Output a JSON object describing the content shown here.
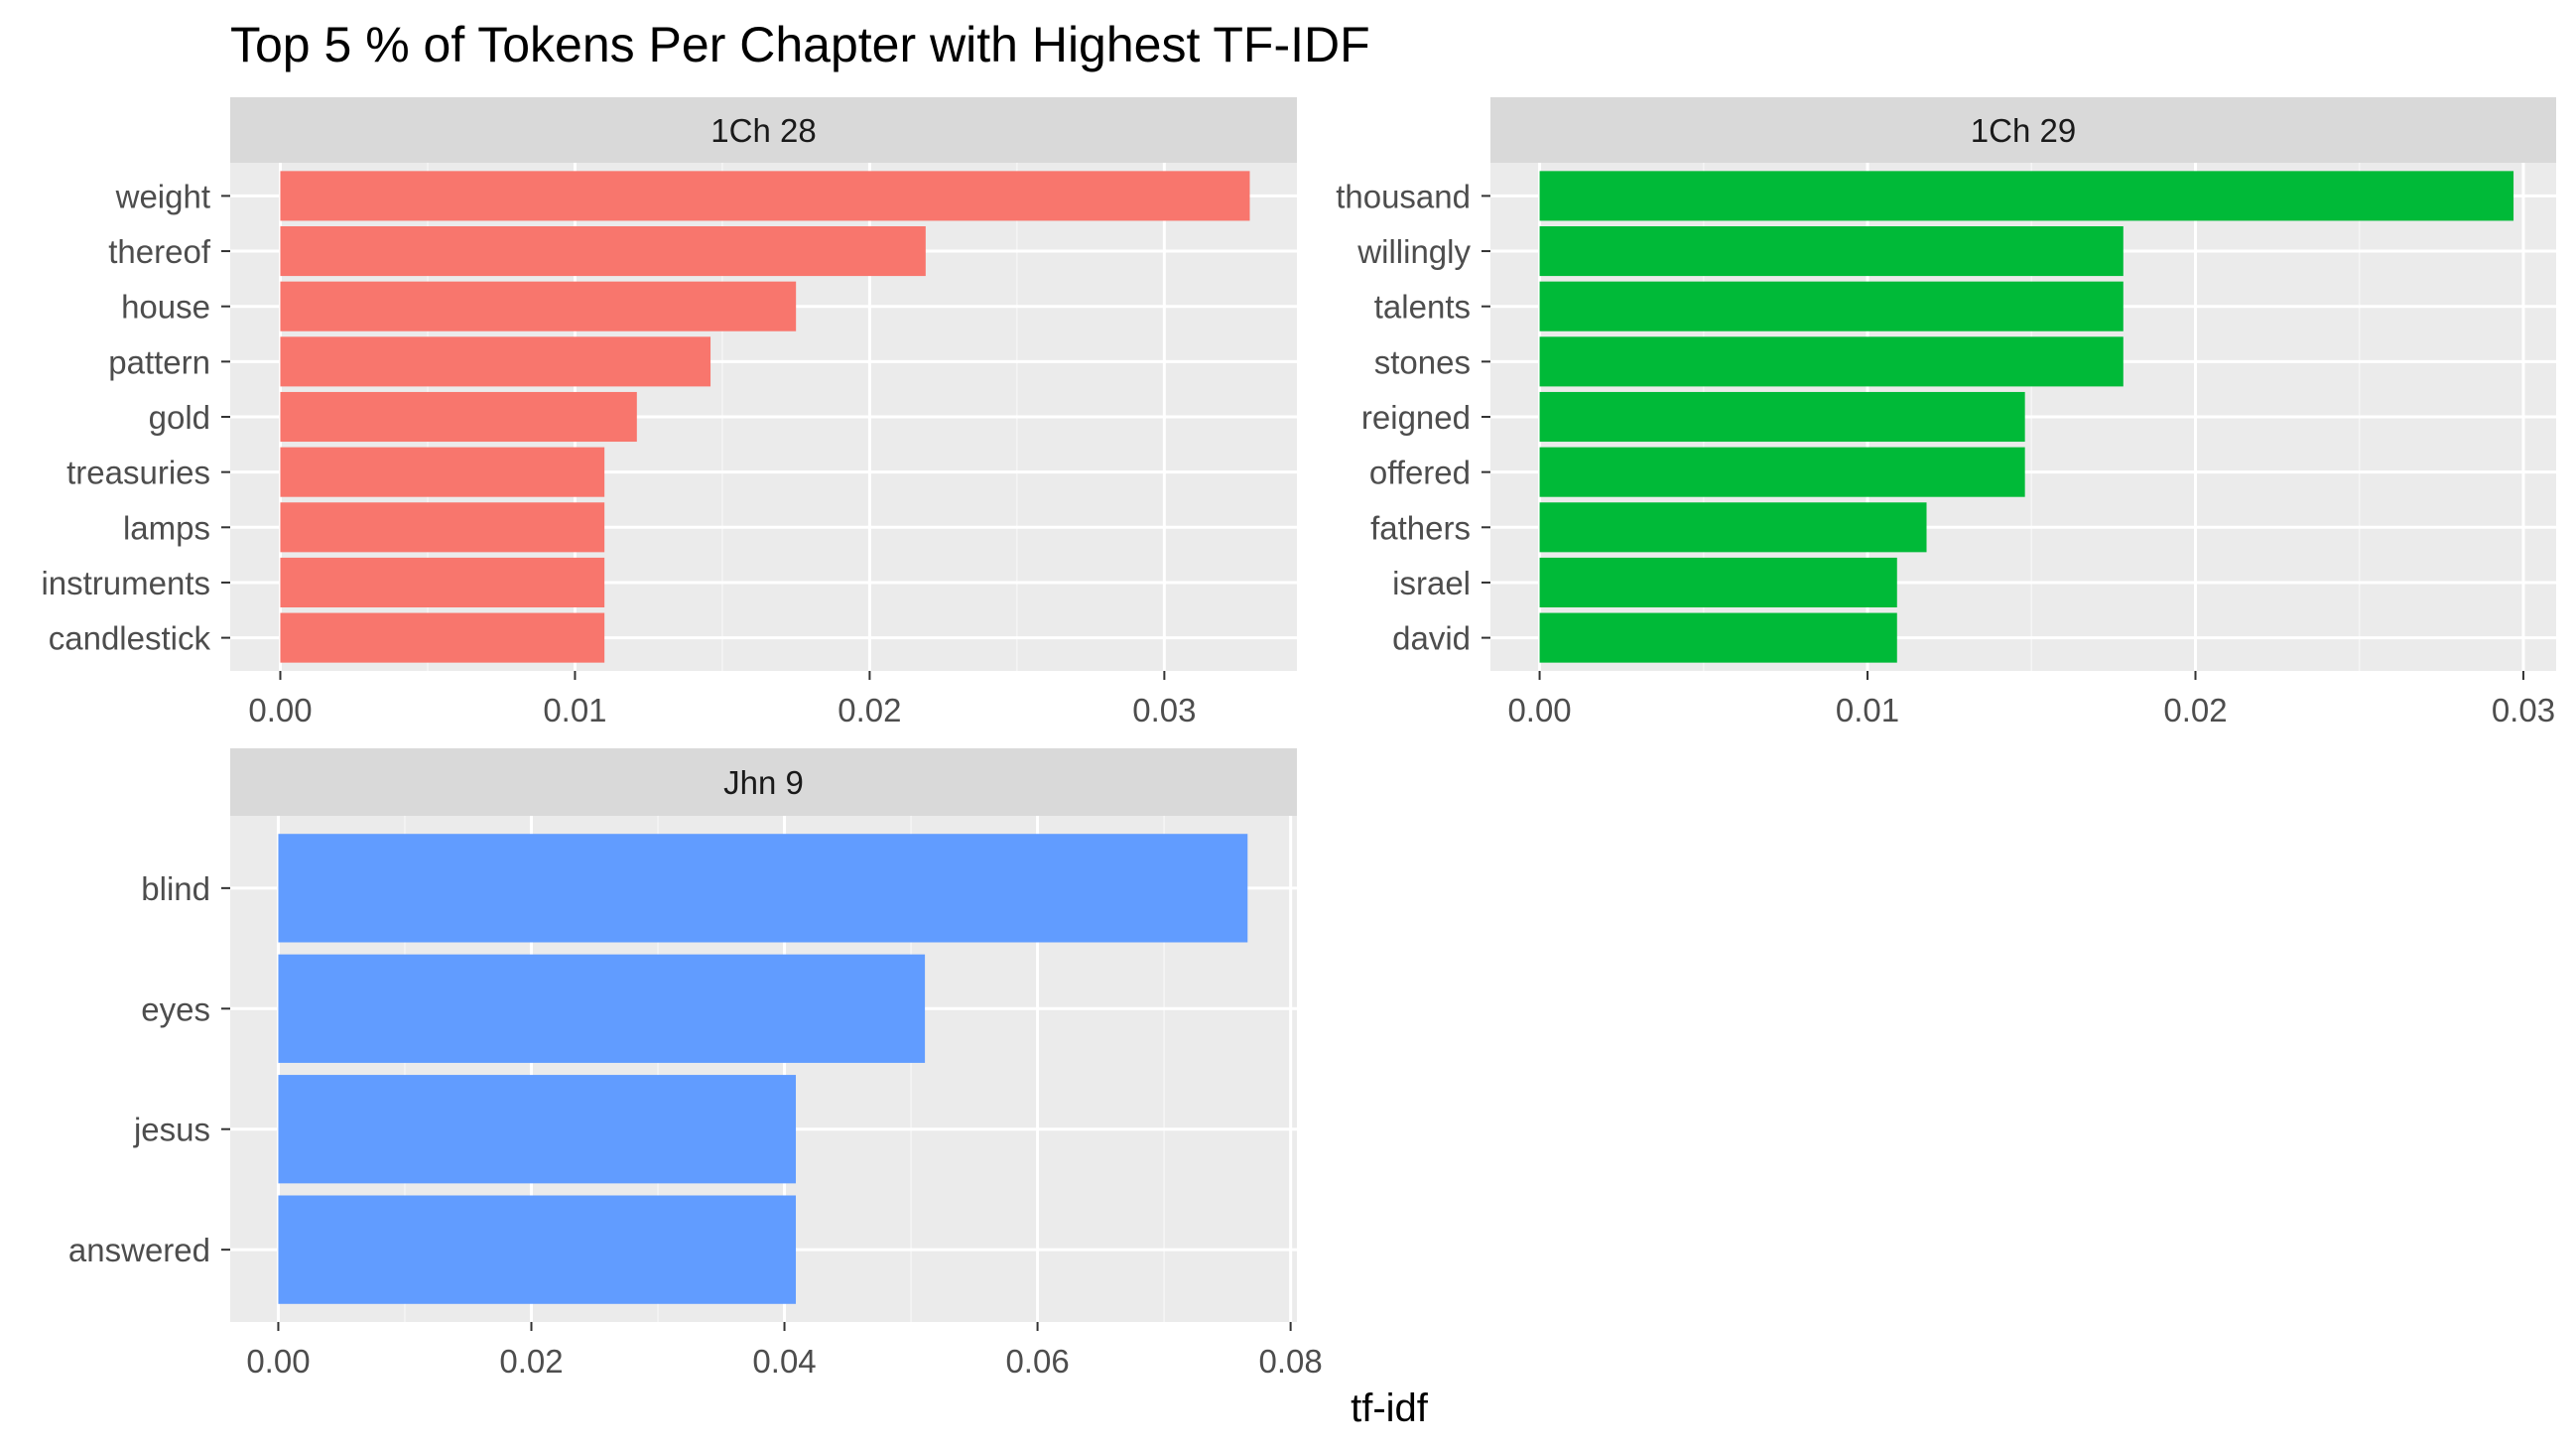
{
  "chart_data": {
    "type": "bar",
    "orientation": "horizontal",
    "layout": "facet-wrap",
    "title": "Top 5 % of Tokens Per Chapter with Highest TF-IDF",
    "xlabel": "tf-idf",
    "ylabel": "",
    "grid": true,
    "legend": "none",
    "panels": [
      {
        "strip": "1Ch 28",
        "color": "#F8766D",
        "xlim": [
          -0.0017,
          0.0345
        ],
        "ticks": [
          0.0,
          0.01,
          0.02,
          0.03
        ],
        "tick_labels": [
          "0.00",
          "0.01",
          "0.02",
          "0.03"
        ],
        "categories": [
          "weight",
          "thereof",
          "house",
          "pattern",
          "gold",
          "treasuries",
          "lamps",
          "instruments",
          "candlestick"
        ],
        "values": [
          0.0329,
          0.0219,
          0.0175,
          0.0146,
          0.0121,
          0.011,
          0.011,
          0.011,
          0.011
        ]
      },
      {
        "strip": "1Ch 29",
        "color": "#00BA38",
        "xlim": [
          -0.0015,
          0.031
        ],
        "ticks": [
          0.0,
          0.01,
          0.02,
          0.03
        ],
        "tick_labels": [
          "0.00",
          "0.01",
          "0.02",
          "0.03"
        ],
        "categories": [
          "thousand",
          "willingly",
          "talents",
          "stones",
          "reigned",
          "offered",
          "fathers",
          "israel",
          "david"
        ],
        "values": [
          0.0297,
          0.0178,
          0.0178,
          0.0178,
          0.0148,
          0.0148,
          0.0118,
          0.0109,
          0.0109
        ]
      },
      {
        "strip": "Jhn 9",
        "color": "#619CFF",
        "xlim": [
          -0.0038,
          0.0805
        ],
        "ticks": [
          0.0,
          0.02,
          0.04,
          0.06,
          0.08
        ],
        "tick_labels": [
          "0.00",
          "0.02",
          "0.04",
          "0.06",
          "0.08"
        ],
        "categories": [
          "blind",
          "eyes",
          "jesus",
          "answered"
        ],
        "values": [
          0.0766,
          0.0511,
          0.0409,
          0.0409
        ]
      }
    ]
  }
}
